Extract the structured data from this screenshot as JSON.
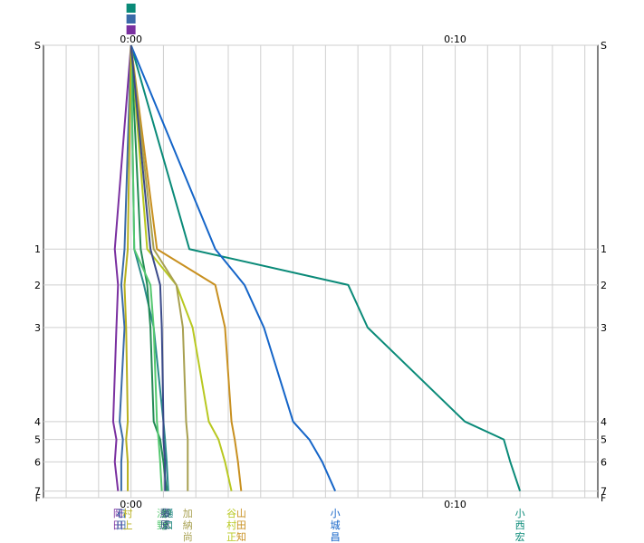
{
  "chart_data": {
    "type": "line",
    "x_axis": {
      "tick_labels": [
        "0:00",
        "0:10"
      ],
      "tick_values_min": [
        0,
        10
      ],
      "range_min": [
        -2.7,
        14.4
      ]
    },
    "y_axis": {
      "stops": [
        "S",
        "1",
        "2",
        "3",
        "4",
        "5",
        "6",
        "7",
        "F"
      ],
      "stop_positions": [
        0,
        45.5,
        53.5,
        63,
        84,
        88,
        93,
        99.5,
        101
      ]
    },
    "series": [
      {
        "name": "小西宏",
        "label_chars": [
          "小",
          "西",
          "宏"
        ],
        "color": "#0a8a78",
        "values": [
          0,
          1.8,
          6.7,
          7.3,
          10.3,
          11.5,
          11.7,
          12.0
        ]
      },
      {
        "name": "小城昌",
        "label_chars": [
          "小",
          "城",
          "昌"
        ],
        "color": "#1565c8",
        "values": [
          0,
          2.6,
          3.5,
          4.1,
          5.0,
          5.5,
          5.9,
          6.3
        ]
      },
      {
        "name": "山田知",
        "label_chars": [
          "山",
          "田",
          "知"
        ],
        "color": "#c89020",
        "values": [
          0,
          0.8,
          2.6,
          2.9,
          3.1,
          3.2,
          3.3,
          3.4
        ]
      },
      {
        "name": "谷村正",
        "label_chars": [
          "谷",
          "村",
          "正"
        ],
        "color": "#b8c820",
        "values": [
          0,
          0.5,
          1.4,
          1.9,
          2.4,
          2.7,
          2.9,
          3.1
        ]
      },
      {
        "name": "加納尚",
        "label_chars": [
          "加",
          "納",
          "尚"
        ],
        "color": "#a8a050",
        "values": [
          0,
          0.7,
          1.4,
          1.6,
          1.7,
          1.75,
          1.75,
          1.75
        ]
      },
      {
        "name": "樋口",
        "label_chars": [
          "樋",
          "口",
          ""
        ],
        "color": "#2a8a8a",
        "values": [
          0,
          0.1,
          0.4,
          0.7,
          1.0,
          1.05,
          1.1,
          1.15
        ]
      },
      {
        "name": "鈴木",
        "label_chars": [
          "鈴",
          "木",
          ""
        ],
        "color": "#228a55",
        "values": [
          0,
          0.3,
          0.5,
          0.6,
          0.7,
          0.9,
          1.0,
          1.1
        ]
      },
      {
        "name": "浅野",
        "label_chars": [
          "浅",
          "野",
          ""
        ],
        "color": "#55c870",
        "values": [
          0,
          0.1,
          0.6,
          0.7,
          0.8,
          0.85,
          0.9,
          0.95
        ]
      },
      {
        "name": "岡田",
        "label_chars": [
          "岡",
          "田",
          ""
        ],
        "color": "#7a30a0",
        "values": [
          0,
          -0.5,
          -0.4,
          -0.45,
          -0.55,
          -0.45,
          -0.5,
          -0.4
        ]
      },
      {
        "name": "石田",
        "label_chars": [
          "石",
          "田",
          ""
        ],
        "color": "#3a6aa8",
        "values": [
          0,
          -0.2,
          -0.3,
          -0.2,
          -0.35,
          -0.25,
          -0.3,
          -0.3
        ]
      },
      {
        "name": "村上",
        "label_chars": [
          "村",
          "上",
          ""
        ],
        "color": "#b8b020",
        "values": [
          0,
          -0.1,
          -0.2,
          -0.15,
          -0.1,
          -0.15,
          -0.1,
          -0.1
        ]
      },
      {
        "name": "藤原",
        "label_chars": [
          "藤",
          "原",
          ""
        ],
        "color": "#3a4a8a",
        "values": [
          0,
          0.6,
          0.9,
          0.95,
          1.0,
          1.0,
          1.05,
          1.05
        ]
      }
    ],
    "grid": true,
    "legend": "none"
  }
}
